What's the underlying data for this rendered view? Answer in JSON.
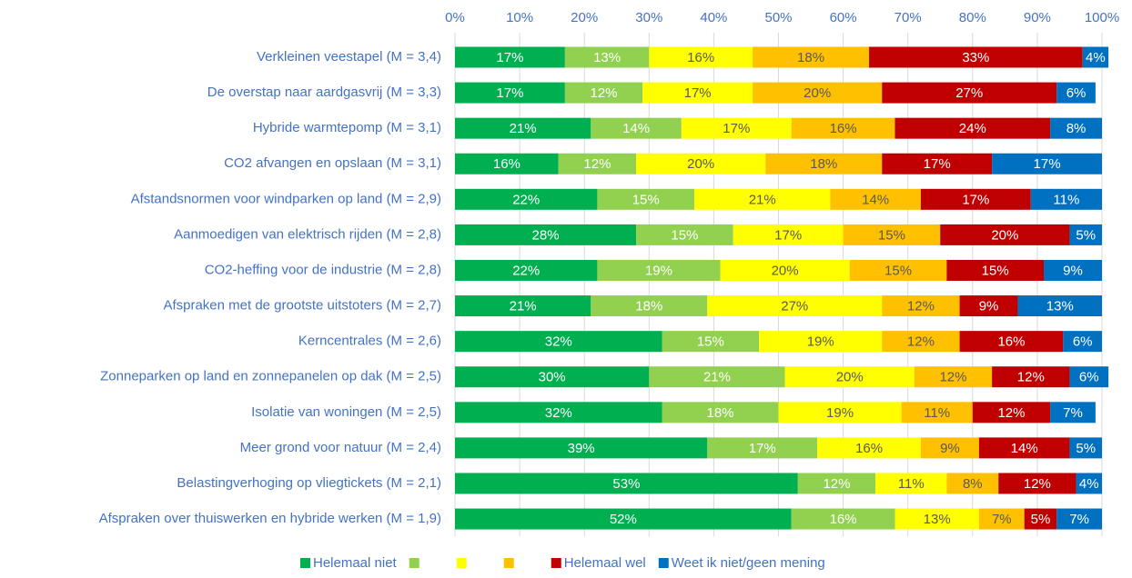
{
  "chart_data": {
    "type": "stacked_bar",
    "orientation": "horizontal",
    "categories": [
      "Verkleinen veestapel (M = 3,4)",
      "De overstap naar aardgasvrij (M = 3,3)",
      "Hybride warmtepomp (M = 3,1)",
      "CO2 afvangen en opslaan (M = 3,1)",
      "Afstandsnormen voor windparken op land (M = 2,9)",
      "Aanmoedigen van elektrisch rijden (M = 2,8)",
      "CO2-heffing voor de industrie (M = 2,8)",
      "Afspraken met de grootste uitstoters (M = 2,7)",
      "Kerncentrales (M = 2,6)",
      "Zonneparken op land en zonnepanelen op dak (M = 2,5)",
      "Isolatie van woningen (M = 2,5)",
      "Meer grond voor natuur (M = 2,4)",
      "Belastingverhoging op vliegtickets (M = 2,1)",
      "Afspraken over thuiswerken en hybride werken (M = 1,9)"
    ],
    "series": [
      {
        "name": "Helemaal niet",
        "color": "#00b050",
        "values": [
          17,
          17,
          21,
          16,
          22,
          28,
          22,
          21,
          32,
          30,
          32,
          39,
          53,
          52
        ],
        "value_labels": [
          "17%",
          "17%",
          "21%",
          "16%",
          "22%",
          "28%",
          "22%",
          "21%",
          "32%",
          "30%",
          "32%",
          "39%",
          "53%",
          "52%"
        ]
      },
      {
        "name": null,
        "color": "#92d050",
        "values": [
          13,
          12,
          14,
          12,
          15,
          15,
          19,
          18,
          15,
          21,
          18,
          17,
          12,
          16
        ],
        "value_labels": [
          "13%",
          "12%",
          "14%",
          "12%",
          "15%",
          "15%",
          "19%",
          "18%",
          "15%",
          "21%",
          "18%",
          "17%",
          "12%",
          "16%"
        ]
      },
      {
        "name": null,
        "color": "#ffff00",
        "values": [
          16,
          17,
          17,
          20,
          21,
          17,
          20,
          27,
          19,
          20,
          19,
          16,
          11,
          13
        ],
        "value_labels": [
          "16%",
          "17%",
          "17%",
          "20%",
          "21%",
          "17%",
          "20%",
          "27%",
          "19%",
          "20%",
          "19%",
          "16%",
          "11%",
          "13%"
        ]
      },
      {
        "name": null,
        "color": "#ffc000",
        "values": [
          18,
          20,
          16,
          18,
          14,
          15,
          15,
          12,
          12,
          12,
          11,
          9,
          8,
          7
        ],
        "value_labels": [
          "18%",
          "20%",
          "16%",
          "18%",
          "14%",
          "15%",
          "15%",
          "12%",
          "12%",
          "12%",
          "11%",
          "9%",
          "8%",
          "7%"
        ]
      },
      {
        "name": "Helemaal wel",
        "color": "#c00000",
        "values": [
          33,
          27,
          24,
          17,
          17,
          20,
          15,
          9,
          16,
          12,
          12,
          14,
          12,
          5
        ],
        "value_labels": [
          "33%",
          "27%",
          "24%",
          "17%",
          "17%",
          "20%",
          "15%",
          "9%",
          "16%",
          "12%",
          "12%",
          "14%",
          "12%",
          "5%"
        ]
      },
      {
        "name": "Weet ik niet/geen mening",
        "color": "#0070c0",
        "values": [
          4,
          6,
          8,
          17,
          11,
          5,
          9,
          13,
          6,
          6,
          7,
          5,
          4,
          7
        ],
        "value_labels": [
          "4%",
          "6%",
          "8%",
          "17%",
          "11%",
          "5%",
          "9%",
          "13%",
          "6%",
          "6%",
          "7%",
          "5%",
          "4%",
          "7%"
        ]
      }
    ],
    "xlim": [
      0,
      100
    ],
    "xticks": [
      {
        "value": 0,
        "label": "0%"
      },
      {
        "value": 10,
        "label": "10%"
      },
      {
        "value": 20,
        "label": "20%"
      },
      {
        "value": 30,
        "label": "30%"
      },
      {
        "value": 40,
        "label": "40%"
      },
      {
        "value": 50,
        "label": "50%"
      },
      {
        "value": 60,
        "label": "60%"
      },
      {
        "value": 70,
        "label": "70%"
      },
      {
        "value": 80,
        "label": "80%"
      },
      {
        "value": 90,
        "label": "90%"
      },
      {
        "value": 100,
        "label": "100%"
      }
    ],
    "grid": true,
    "legend": "bottom"
  }
}
